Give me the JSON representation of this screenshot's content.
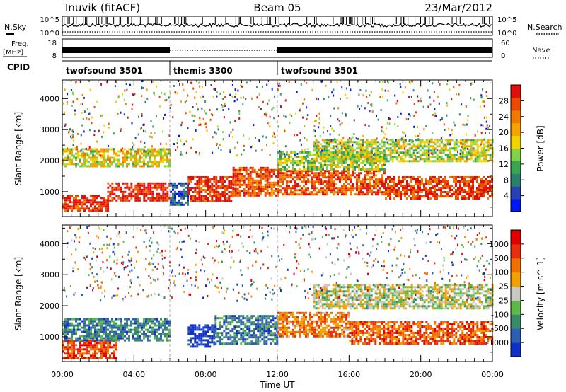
{
  "header": {
    "station": "Inuvik (fitACF)",
    "beam": "Beam 05",
    "date": "23/Mar/2012"
  },
  "sky_panel": {
    "left_label": "N.Sky",
    "right_label": "N.Search",
    "left_ticks": [
      "10^5",
      "10^0"
    ],
    "right_ticks": [
      "10^5",
      "10^0"
    ]
  },
  "freq_panel": {
    "left_label_1": "Freq.",
    "left_label_2": "[MHz]",
    "right_label": "Nave",
    "left_ticks": [
      "18",
      "8"
    ],
    "right_ticks": [
      "60",
      "0"
    ]
  },
  "cpid_panel": {
    "label": "CPID",
    "segments": [
      {
        "name": "twofsound 3501",
        "start": 0,
        "end": 6
      },
      {
        "name": "themis 3300",
        "start": 6,
        "end": 12
      },
      {
        "name": "twofsound 3501",
        "start": 12,
        "end": 24
      }
    ]
  },
  "chart_data": [
    {
      "type": "heatmap",
      "title": "",
      "parameter": "Power",
      "xlabel": "",
      "ylabel": "Slant Range [km]",
      "xlim": [
        0,
        24
      ],
      "ylim": [
        200,
        4600
      ],
      "y_ticks": [
        1000,
        2000,
        3000,
        4000
      ],
      "colorbar": {
        "label": "Power [dB]",
        "ticks": [
          4,
          8,
          12,
          16,
          20,
          24,
          28
        ],
        "range": [
          0,
          32
        ],
        "colors": [
          "#0018f0",
          "#2a3fb0",
          "#2f7f6f",
          "#3aa356",
          "#7fd24a",
          "#f0d400",
          "#f3a400",
          "#f07a00",
          "#ea4a00",
          "#e01010"
        ]
      },
      "bands": [
        {
          "x": [
            0,
            2.5
          ],
          "y": [
            400,
            900
          ],
          "level": 0.9
        },
        {
          "x": [
            2.5,
            6
          ],
          "y": [
            700,
            1300
          ],
          "level": 0.95
        },
        {
          "x": [
            0,
            6
          ],
          "y": [
            1800,
            2400
          ],
          "level": 0.55
        },
        {
          "x": [
            6,
            7
          ],
          "y": [
            600,
            1300
          ],
          "level": 0.2
        },
        {
          "x": [
            7,
            9.5
          ],
          "y": [
            700,
            1500
          ],
          "level": 0.92
        },
        {
          "x": [
            9.5,
            12
          ],
          "y": [
            900,
            1800
          ],
          "level": 0.85
        },
        {
          "x": [
            12,
            18
          ],
          "y": [
            900,
            1700
          ],
          "level": 0.85
        },
        {
          "x": [
            12,
            18
          ],
          "y": [
            1700,
            2300
          ],
          "level": 0.45
        },
        {
          "x": [
            18,
            24
          ],
          "y": [
            800,
            1500
          ],
          "level": 0.88
        },
        {
          "x": [
            14,
            24
          ],
          "y": [
            2000,
            2700
          ],
          "level": 0.5
        }
      ]
    },
    {
      "type": "heatmap",
      "title": "",
      "parameter": "Velocity",
      "xlabel": "Time UT",
      "ylabel": "Slant Range [km]",
      "xlim": [
        0,
        24
      ],
      "ylim": [
        200,
        4600
      ],
      "x_ticks": [
        "00:00",
        "04:00",
        "08:00",
        "12:00",
        "16:00",
        "20:00",
        "00:00"
      ],
      "y_ticks": [
        1000,
        2000,
        3000,
        4000
      ],
      "colorbar": {
        "label": "Velocity [m s^-1]",
        "ticks": [
          "1000",
          "500",
          "100",
          "25",
          "-25",
          "-100",
          "-500",
          "-1000"
        ],
        "colors": [
          "#1030c8",
          "#2f5fb0",
          "#3a8a6a",
          "#5fb84a",
          "#c8c8c0",
          "#f0a000",
          "#f07000",
          "#e83010",
          "#e00000"
        ]
      },
      "bands": [
        {
          "x": [
            0,
            3
          ],
          "y": [
            300,
            900
          ],
          "level": 0.82
        },
        {
          "x": [
            0,
            6
          ],
          "y": [
            900,
            1600
          ],
          "level": 0.25
        },
        {
          "x": [
            7,
            8.5
          ],
          "y": [
            700,
            1400
          ],
          "level": 0.05
        },
        {
          "x": [
            8.5,
            12
          ],
          "y": [
            800,
            1700
          ],
          "level": 0.22
        },
        {
          "x": [
            12,
            16
          ],
          "y": [
            1000,
            1800
          ],
          "level": 0.7
        },
        {
          "x": [
            14,
            24
          ],
          "y": [
            1900,
            2700
          ],
          "level": 0.48
        },
        {
          "x": [
            16,
            24
          ],
          "y": [
            800,
            1500
          ],
          "level": 0.78
        }
      ]
    }
  ]
}
